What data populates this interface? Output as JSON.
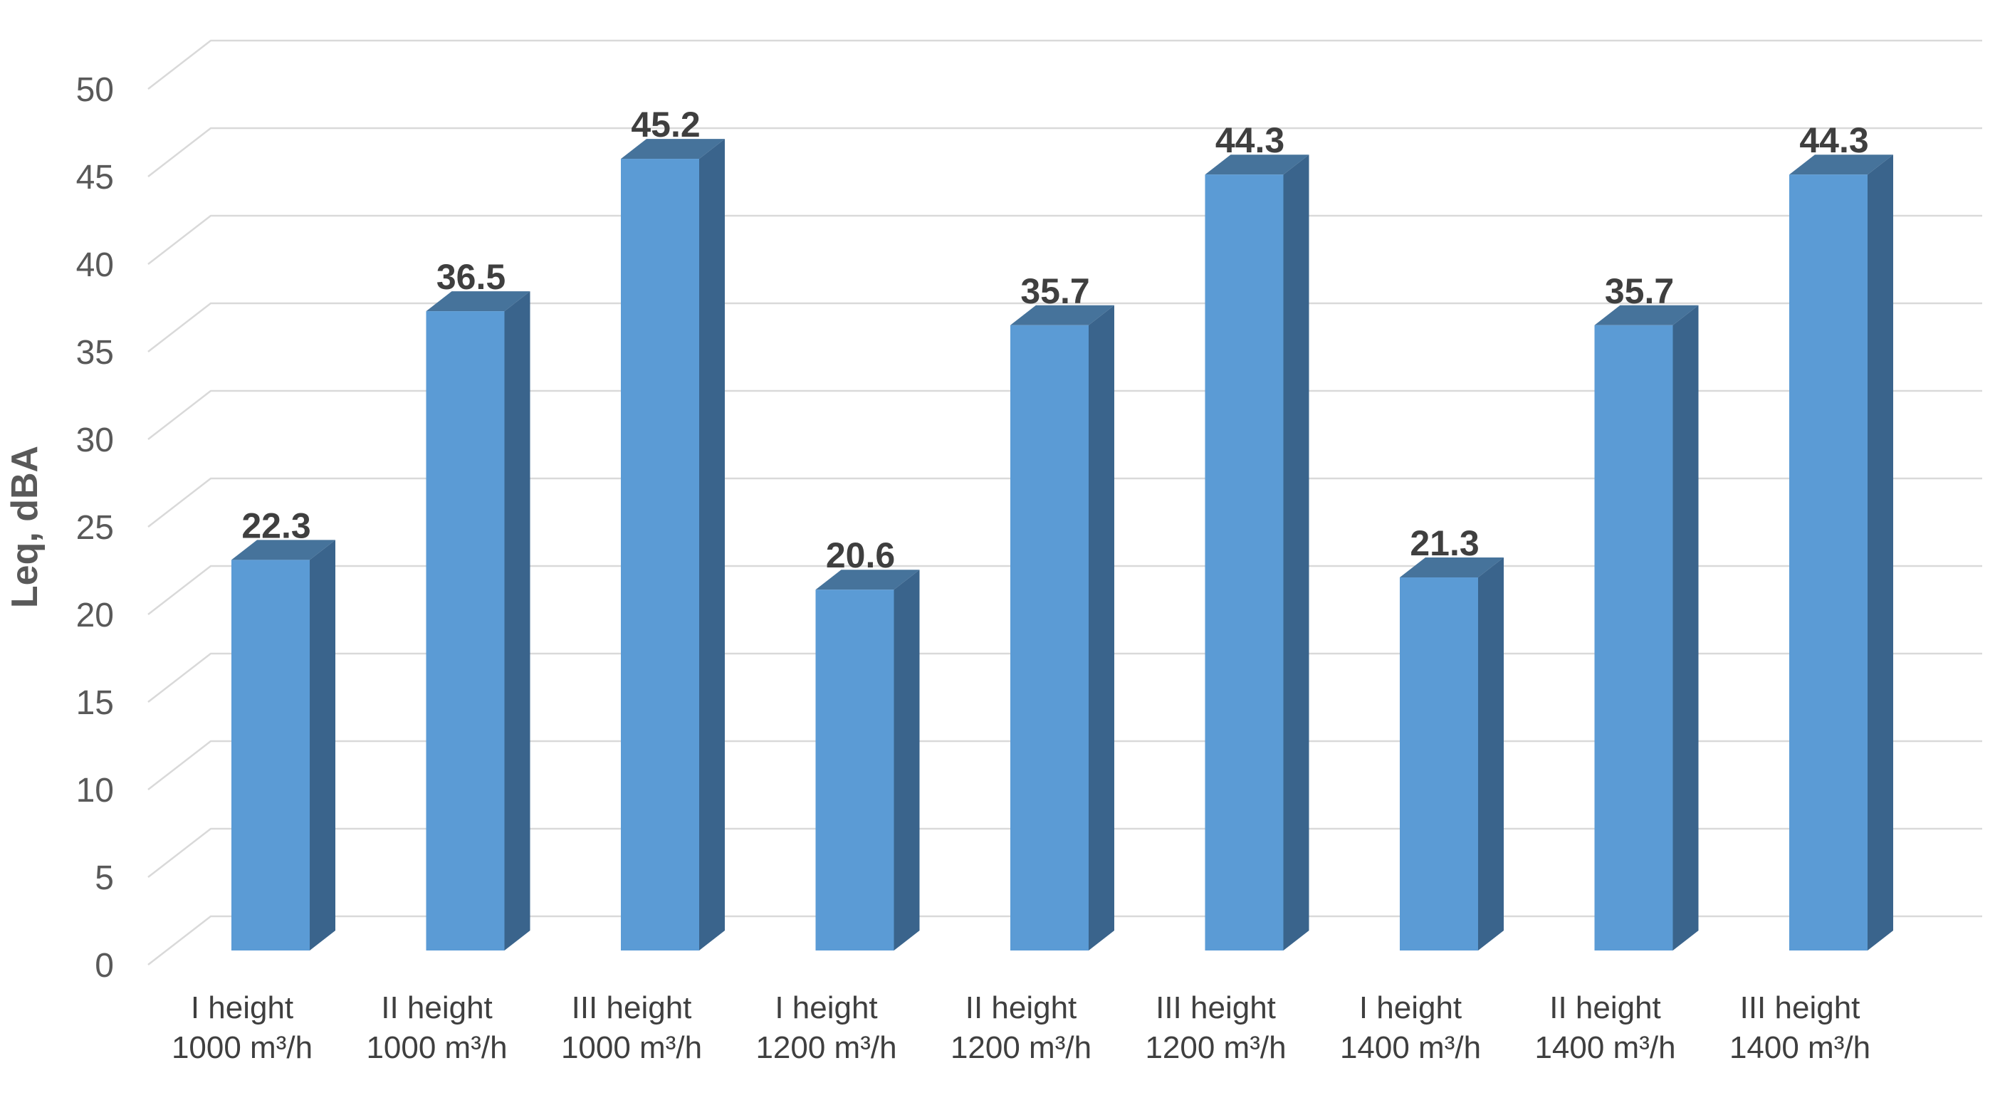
{
  "chart_data": {
    "type": "bar",
    "subtype": "3d-clustered-column",
    "title": "",
    "xlabel": "",
    "ylabel": "Leq, dBA",
    "ylim": [
      0,
      50
    ],
    "yticks": [
      0,
      5,
      10,
      15,
      20,
      25,
      30,
      35,
      40,
      45,
      50
    ],
    "ytick_labels": [
      "0",
      "5",
      "10",
      "15",
      "20",
      "25",
      "30",
      "35",
      "40",
      "45",
      "50"
    ],
    "grid": true,
    "legend_position": "none",
    "categories": [
      {
        "line1": "I height",
        "line2": "1000 m³/h"
      },
      {
        "line1": "II height",
        "line2": "1000 m³/h"
      },
      {
        "line1": "III height",
        "line2": "1000 m³/h"
      },
      {
        "line1": "I height",
        "line2": "1200 m³/h"
      },
      {
        "line1": "II height",
        "line2": "1200 m³/h"
      },
      {
        "line1": "III height",
        "line2": "1200 m³/h"
      },
      {
        "line1": "I height",
        "line2": "1400 m³/h"
      },
      {
        "line1": "II height",
        "line2": "1400 m³/h"
      },
      {
        "line1": "III height",
        "line2": "1400 m³/h"
      }
    ],
    "series": [
      {
        "name": "Leq, dBA",
        "values": [
          22.3,
          36.5,
          45.2,
          20.6,
          35.7,
          44.3,
          21.3,
          35.7,
          44.3
        ]
      }
    ],
    "data_labels": [
      "22.3",
      "36.5",
      "45.2",
      "20.6",
      "35.7",
      "44.3",
      "21.3",
      "35.7",
      "44.3"
    ],
    "colors": {
      "bar_front": "#5B9BD5",
      "bar_top": "#46739B",
      "bar_side": "#3A648C",
      "gridline": "#D9D9D9",
      "axis_title": "#595959",
      "tick_label": "#595959",
      "data_label": "#3F3F3F",
      "category_label": "#3F3F3F",
      "background": "#FFFFFF"
    }
  }
}
